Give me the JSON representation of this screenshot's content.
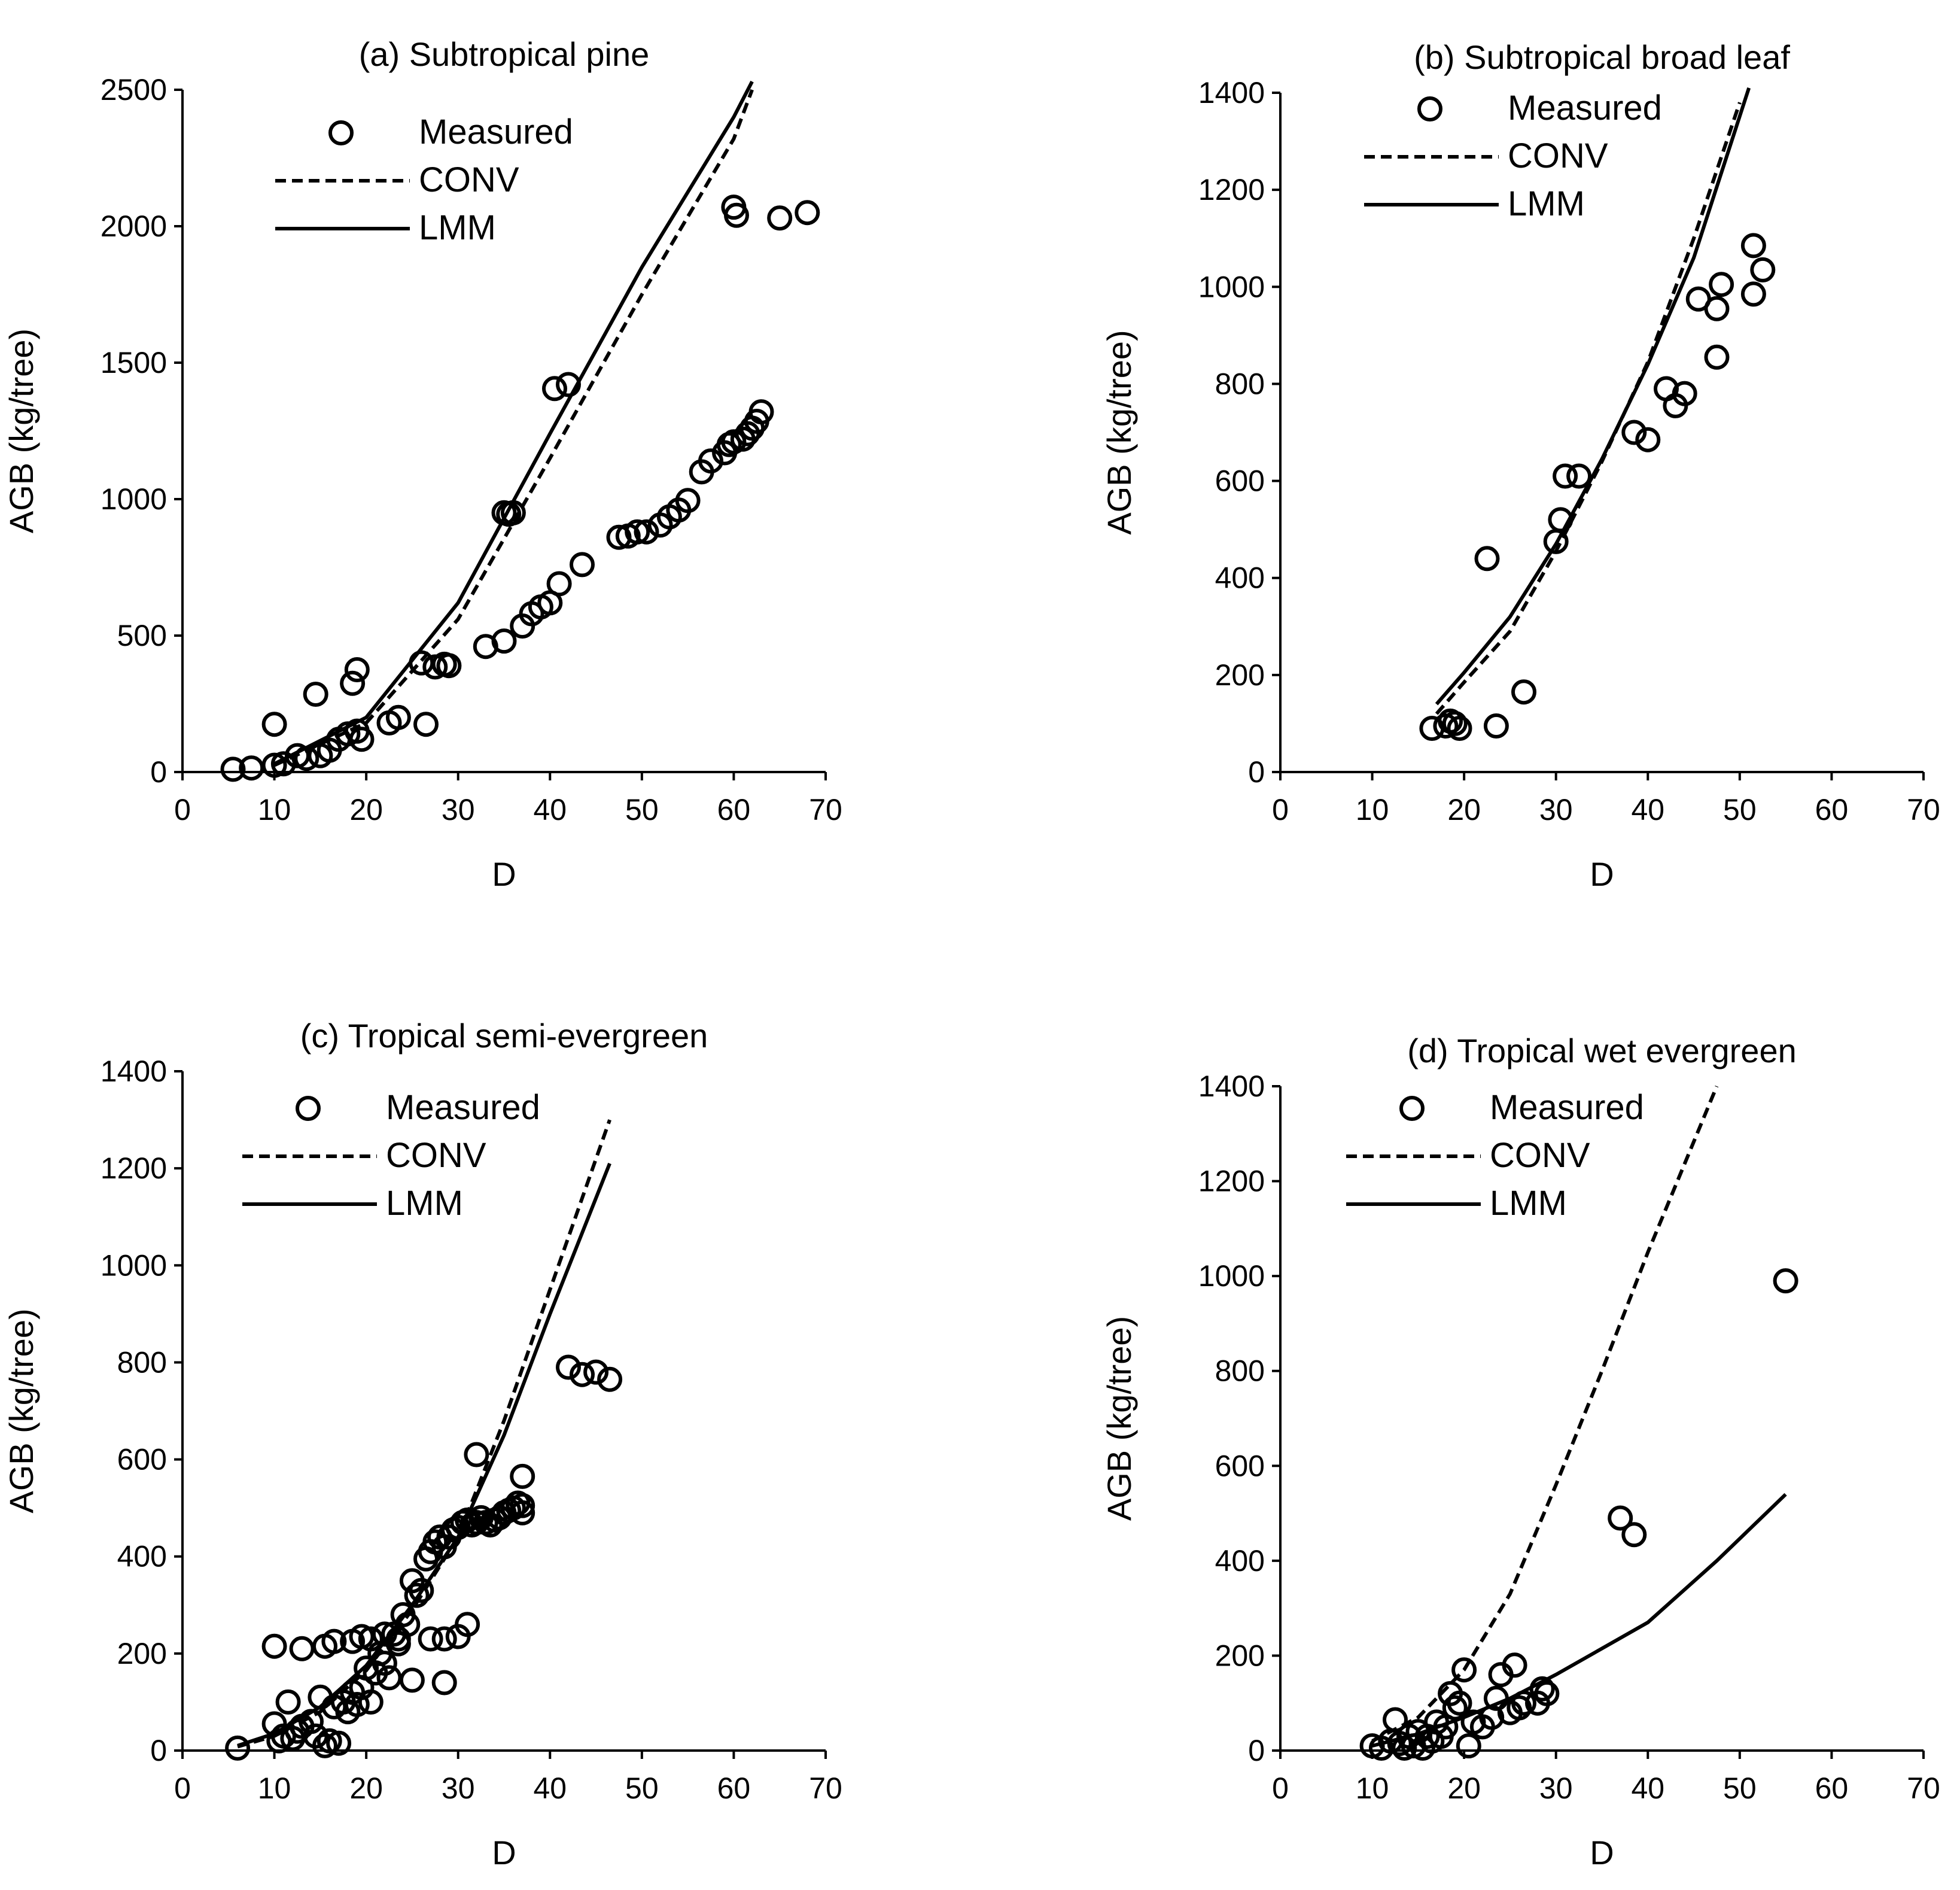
{
  "legend": {
    "labels": [
      "Measured",
      "CONV",
      "LMM"
    ],
    "styles": [
      "marker",
      "dashed",
      "solid"
    ]
  },
  "chart_data": [
    {
      "type": "scatter",
      "title": "(a) Subtropical pine",
      "xlabel": "D",
      "ylabel": "AGB (kg/tree)",
      "xlim": [
        0,
        70
      ],
      "ylim": [
        0,
        2500
      ],
      "xticks": [
        0,
        10,
        20,
        30,
        40,
        50,
        60,
        70
      ],
      "yticks": [
        0,
        500,
        1000,
        1500,
        2000,
        2500
      ],
      "measured": [
        [
          5.5,
          10
        ],
        [
          7.5,
          15
        ],
        [
          10,
          25
        ],
        [
          11,
          30
        ],
        [
          12.5,
          60
        ],
        [
          13.5,
          50
        ],
        [
          15,
          60
        ],
        [
          16,
          80
        ],
        [
          17,
          120
        ],
        [
          18,
          140
        ],
        [
          19,
          150
        ],
        [
          19.5,
          120
        ],
        [
          10,
          175
        ],
        [
          14.5,
          285
        ],
        [
          18.5,
          325
        ],
        [
          19,
          375
        ],
        [
          22.5,
          180
        ],
        [
          23.5,
          200
        ],
        [
          26.5,
          175
        ],
        [
          26,
          400
        ],
        [
          27.5,
          385
        ],
        [
          28.5,
          395
        ],
        [
          29,
          390
        ],
        [
          33,
          460
        ],
        [
          35,
          480
        ],
        [
          37,
          535
        ],
        [
          38,
          580
        ],
        [
          39,
          605
        ],
        [
          40,
          620
        ],
        [
          41,
          690
        ],
        [
          43.5,
          760
        ],
        [
          35,
          950
        ],
        [
          35.5,
          945
        ],
        [
          36,
          950
        ],
        [
          40.5,
          1405
        ],
        [
          42,
          1420
        ],
        [
          47.5,
          860
        ],
        [
          48.5,
          865
        ],
        [
          49.5,
          880
        ],
        [
          50.5,
          880
        ],
        [
          52,
          905
        ],
        [
          53,
          935
        ],
        [
          54,
          960
        ],
        [
          55,
          995
        ],
        [
          56.5,
          1100
        ],
        [
          57.5,
          1140
        ],
        [
          59,
          1170
        ],
        [
          59.5,
          1200
        ],
        [
          60,
          1210
        ],
        [
          61,
          1220
        ],
        [
          61.5,
          1240
        ],
        [
          62,
          1260
        ],
        [
          62.5,
          1285
        ],
        [
          63,
          1320
        ],
        [
          60,
          2070
        ],
        [
          60.3,
          2040
        ],
        [
          65,
          2030
        ],
        [
          68,
          2050
        ]
      ],
      "series": [
        {
          "name": "CONV",
          "points": [
            [
              10,
              25
            ],
            [
              20,
              180
            ],
            [
              30,
              560
            ],
            [
              40,
              1150
            ],
            [
              50,
              1750
            ],
            [
              60,
              2320
            ],
            [
              62,
              2500
            ]
          ]
        },
        {
          "name": "LMM",
          "points": [
            [
              10,
              30
            ],
            [
              20,
              200
            ],
            [
              30,
              620
            ],
            [
              40,
              1240
            ],
            [
              50,
              1850
            ],
            [
              60,
              2400
            ],
            [
              62,
              2530
            ]
          ]
        }
      ]
    },
    {
      "type": "scatter",
      "title": "(b) Subtropical broad leaf",
      "xlabel": "D",
      "ylabel": "AGB (kg/tree)",
      "xlim": [
        0,
        70
      ],
      "ylim": [
        0,
        1400
      ],
      "xticks": [
        0,
        10,
        20,
        30,
        40,
        50,
        60,
        70
      ],
      "yticks": [
        0,
        200,
        400,
        600,
        800,
        1000,
        1200,
        1400
      ],
      "measured": [
        [
          16.5,
          90
        ],
        [
          18,
          95
        ],
        [
          18.5,
          105
        ],
        [
          19,
          100
        ],
        [
          19.5,
          90
        ],
        [
          23.5,
          95
        ],
        [
          26.5,
          165
        ],
        [
          22.5,
          440
        ],
        [
          30,
          475
        ],
        [
          30.5,
          520
        ],
        [
          31,
          610
        ],
        [
          32.5,
          610
        ],
        [
          38.5,
          700
        ],
        [
          40,
          685
        ],
        [
          42,
          790
        ],
        [
          43,
          755
        ],
        [
          44,
          780
        ],
        [
          45.5,
          975
        ],
        [
          47.5,
          955
        ],
        [
          48,
          1005
        ],
        [
          47.5,
          855
        ],
        [
          51.5,
          1085
        ],
        [
          51.5,
          985
        ],
        [
          52.5,
          1035
        ]
      ],
      "series": [
        {
          "name": "CONV",
          "points": [
            [
              17,
              120
            ],
            [
              20,
              185
            ],
            [
              25,
              290
            ],
            [
              30,
              455
            ],
            [
              35,
              640
            ],
            [
              40,
              845
            ],
            [
              45,
              1100
            ],
            [
              50,
              1380
            ]
          ]
        },
        {
          "name": "LMM",
          "points": [
            [
              17,
              140
            ],
            [
              20,
              205
            ],
            [
              25,
              320
            ],
            [
              30,
              470
            ],
            [
              35,
              645
            ],
            [
              40,
              840
            ],
            [
              45,
              1060
            ],
            [
              51,
              1410
            ]
          ]
        }
      ]
    },
    {
      "type": "scatter",
      "title": "(c) Tropical semi-evergreen",
      "xlabel": "D",
      "ylabel": "AGB (kg/tree)",
      "xlim": [
        0,
        70
      ],
      "ylim": [
        0,
        1400
      ],
      "xticks": [
        0,
        10,
        20,
        30,
        40,
        50,
        60,
        70
      ],
      "yticks": [
        0,
        200,
        400,
        600,
        800,
        1000,
        1200,
        1400
      ],
      "measured": [
        [
          6,
          5
        ],
        [
          10,
          55
        ],
        [
          10.5,
          20
        ],
        [
          11,
          30
        ],
        [
          11.5,
          100
        ],
        [
          12,
          25
        ],
        [
          12.5,
          40
        ],
        [
          13,
          50
        ],
        [
          14,
          60
        ],
        [
          14.5,
          30
        ],
        [
          15,
          110
        ],
        [
          15.5,
          10
        ],
        [
          16,
          20
        ],
        [
          16.5,
          90
        ],
        [
          17,
          15
        ],
        [
          17.5,
          100
        ],
        [
          18,
          80
        ],
        [
          18.5,
          120
        ],
        [
          19,
          95
        ],
        [
          19.5,
          130
        ],
        [
          20,
          170
        ],
        [
          20.5,
          100
        ],
        [
          21,
          160
        ],
        [
          21.5,
          200
        ],
        [
          22,
          180
        ],
        [
          22.5,
          150
        ],
        [
          23,
          240
        ],
        [
          23.5,
          220
        ],
        [
          24,
          280
        ],
        [
          24.5,
          260
        ],
        [
          25,
          350
        ],
        [
          25.5,
          320
        ],
        [
          26,
          330
        ],
        [
          26.5,
          395
        ],
        [
          27,
          410
        ],
        [
          27.5,
          430
        ],
        [
          28,
          440
        ],
        [
          28.5,
          420
        ],
        [
          29,
          440
        ],
        [
          29.5,
          455
        ],
        [
          30,
          460
        ],
        [
          30.5,
          470
        ],
        [
          31,
          475
        ],
        [
          31.5,
          465
        ],
        [
          32,
          470
        ],
        [
          32.5,
          480
        ],
        [
          33,
          470
        ],
        [
          33.5,
          465
        ],
        [
          34,
          475
        ],
        [
          34.5,
          480
        ],
        [
          35,
          490
        ],
        [
          35.5,
          495
        ],
        [
          36,
          500
        ],
        [
          36.5,
          510
        ],
        [
          37,
          505
        ],
        [
          37,
          490
        ],
        [
          10,
          215
        ],
        [
          13,
          210
        ],
        [
          15.5,
          215
        ],
        [
          16.5,
          225
        ],
        [
          18.5,
          225
        ],
        [
          19.5,
          235
        ],
        [
          20.5,
          230
        ],
        [
          22,
          240
        ],
        [
          23.5,
          230
        ],
        [
          25,
          145
        ],
        [
          27,
          230
        ],
        [
          28.5,
          140
        ],
        [
          28.5,
          230
        ],
        [
          30,
          235
        ],
        [
          31,
          260
        ],
        [
          32,
          610
        ],
        [
          37,
          565
        ],
        [
          42,
          790
        ],
        [
          43.5,
          775
        ],
        [
          45,
          780
        ],
        [
          46.5,
          765
        ]
      ],
      "series": [
        {
          "name": "CONV",
          "points": [
            [
              6,
              8
            ],
            [
              10,
              30
            ],
            [
              15,
              80
            ],
            [
              20,
              165
            ],
            [
              25,
              290
            ],
            [
              30,
              440
            ],
            [
              35,
              680
            ],
            [
              40,
              950
            ],
            [
              46.5,
              1300
            ]
          ]
        },
        {
          "name": "LMM",
          "points": [
            [
              6,
              10
            ],
            [
              10,
              35
            ],
            [
              15,
              90
            ],
            [
              20,
              175
            ],
            [
              25,
              300
            ],
            [
              30,
              440
            ],
            [
              35,
              650
            ],
            [
              40,
              900
            ],
            [
              46.5,
              1210
            ]
          ]
        }
      ]
    },
    {
      "type": "scatter",
      "title": "(d) Tropical wet evergreen",
      "xlabel": "D",
      "ylabel": "AGB (kg/tree)",
      "xlim": [
        0,
        70
      ],
      "ylim": [
        0,
        1400
      ],
      "xticks": [
        0,
        10,
        20,
        30,
        40,
        50,
        60,
        70
      ],
      "yticks": [
        0,
        200,
        400,
        600,
        800,
        1000,
        1200,
        1400
      ],
      "measured": [
        [
          10,
          10
        ],
        [
          11,
          5
        ],
        [
          12,
          20
        ],
        [
          12.5,
          65
        ],
        [
          13,
          15
        ],
        [
          13.5,
          5
        ],
        [
          14,
          30
        ],
        [
          14.5,
          10
        ],
        [
          15,
          40
        ],
        [
          15.5,
          5
        ],
        [
          16,
          30
        ],
        [
          16.5,
          20
        ],
        [
          17,
          60
        ],
        [
          17.5,
          30
        ],
        [
          18,
          50
        ],
        [
          18.5,
          120
        ],
        [
          19,
          90
        ],
        [
          19.5,
          100
        ],
        [
          20,
          170
        ],
        [
          20.5,
          10
        ],
        [
          21,
          60
        ],
        [
          22,
          50
        ],
        [
          23,
          70
        ],
        [
          23.5,
          110
        ],
        [
          24,
          160
        ],
        [
          25,
          80
        ],
        [
          25.5,
          180
        ],
        [
          26,
          90
        ],
        [
          26.5,
          100
        ],
        [
          28,
          100
        ],
        [
          28.5,
          130
        ],
        [
          29,
          120
        ],
        [
          37,
          490
        ],
        [
          38.5,
          455
        ],
        [
          55,
          990
        ]
      ],
      "series": [
        {
          "name": "CONV",
          "points": [
            [
              10,
              20
            ],
            [
              15,
              70
            ],
            [
              20,
              170
            ],
            [
              25,
              330
            ],
            [
              30,
              560
            ],
            [
              35,
              800
            ],
            [
              40,
              1050
            ],
            [
              47.5,
              1400
            ]
          ]
        },
        {
          "name": "LMM",
          "points": [
            [
              10,
              10
            ],
            [
              15,
              35
            ],
            [
              20,
              70
            ],
            [
              25,
              110
            ],
            [
              30,
              160
            ],
            [
              35,
              215
            ],
            [
              40,
              270
            ],
            [
              47.5,
              400
            ],
            [
              55,
              540
            ]
          ]
        }
      ]
    }
  ]
}
